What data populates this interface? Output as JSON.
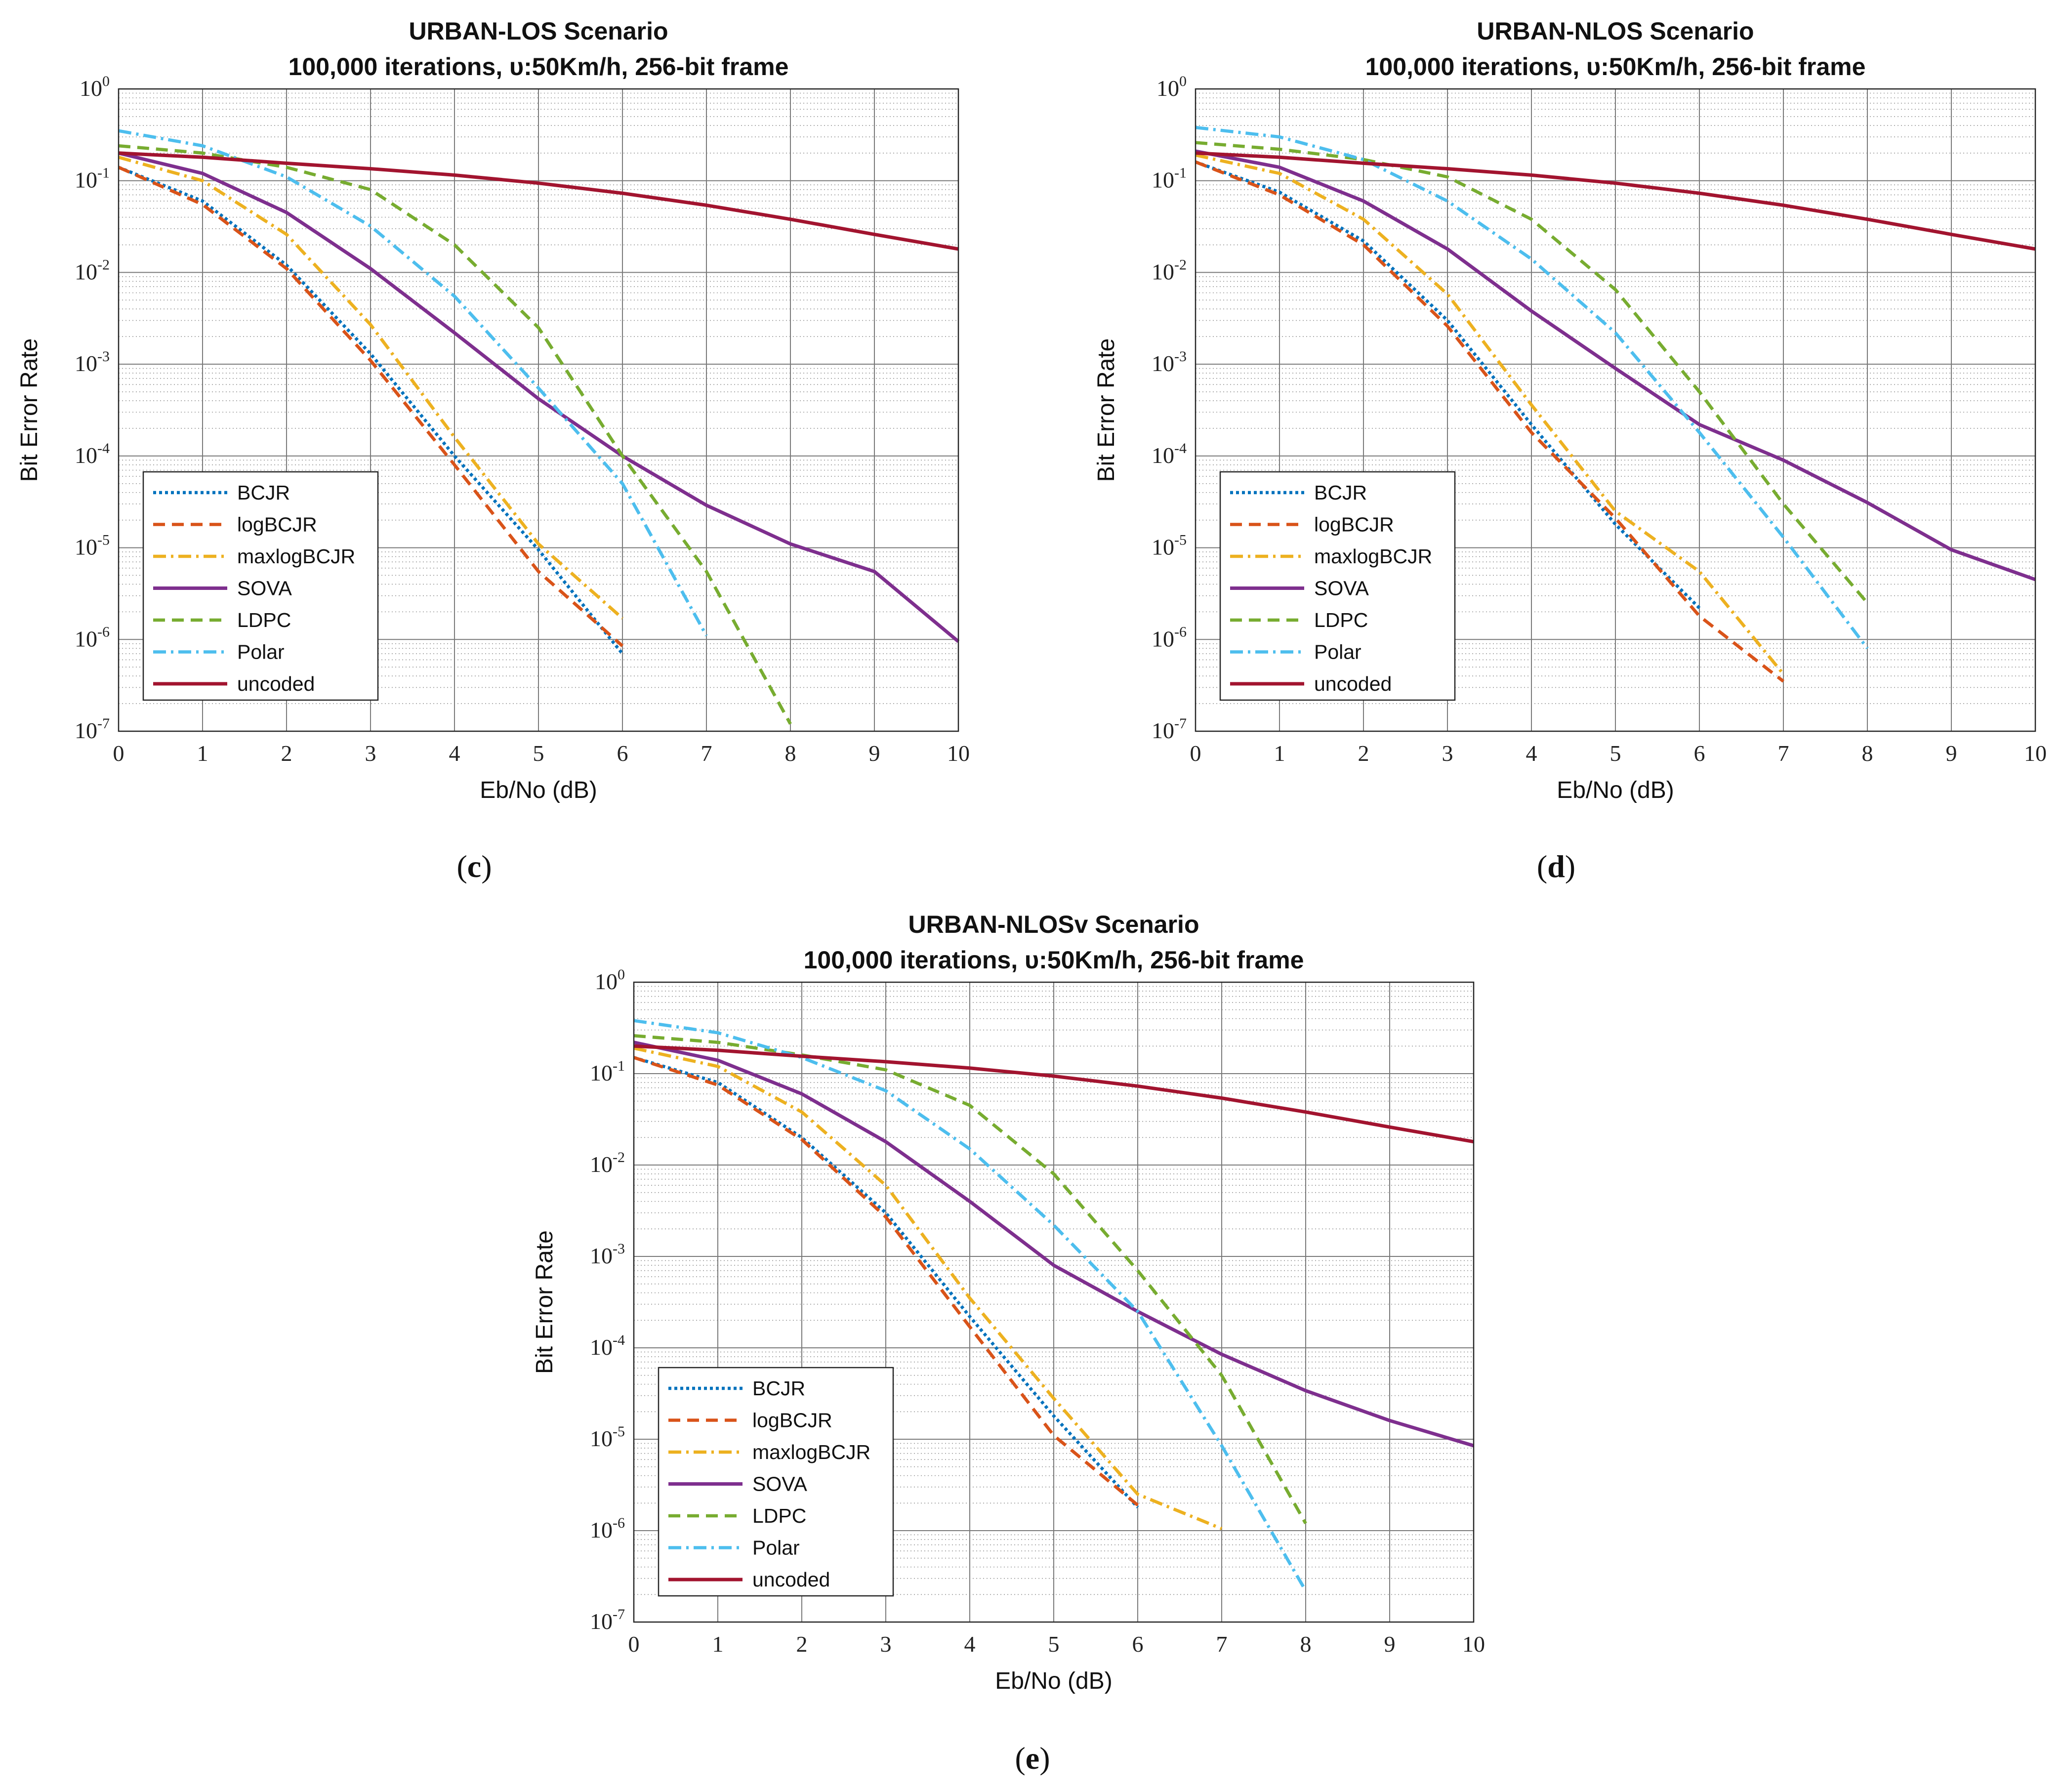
{
  "colors": {
    "BCJR": "#0072BD",
    "logBCJR": "#D95319",
    "maxlogBCJR": "#EDB120",
    "SOVA": "#7E2F8E",
    "LDPC": "#77AC30",
    "Polar": "#4DBEEE",
    "uncoded": "#A2142F"
  },
  "chart_data": [
    {
      "type": "line",
      "panel_label": "c",
      "title": [
        "URBAN-LOS Scenario",
        "100,000 iterations,  υ:50Km/h, 256-bit frame"
      ],
      "xlabel": "Eb/No (dB)",
      "ylabel": "Bit Error Rate",
      "xlim": [
        0,
        10
      ],
      "ylim": [
        1e-07,
        1
      ],
      "yscale": "log",
      "grid": true,
      "legend_position": "lower-left",
      "xticks": [
        "0",
        "1",
        "2",
        "3",
        "4",
        "5",
        "6",
        "7",
        "8",
        "9",
        "10"
      ],
      "yticks": [
        {
          "base": "10",
          "exp": "0"
        },
        {
          "base": "10",
          "exp": "-1"
        },
        {
          "base": "10",
          "exp": "-2"
        },
        {
          "base": "10",
          "exp": "-3"
        },
        {
          "base": "10",
          "exp": "-4"
        },
        {
          "base": "10",
          "exp": "-5"
        },
        {
          "base": "10",
          "exp": "-6"
        },
        {
          "base": "10",
          "exp": "-7"
        }
      ],
      "series": [
        {
          "name": "BCJR",
          "x": [
            0,
            1,
            2,
            3,
            4,
            5,
            6
          ],
          "y": [
            0.14,
            0.06,
            0.012,
            0.0013,
            0.0001,
            9.5e-06,
            7e-07
          ]
        },
        {
          "name": "logBCJR",
          "x": [
            0,
            1,
            2,
            3,
            4,
            5,
            6
          ],
          "y": [
            0.14,
            0.055,
            0.011,
            0.0011,
            8e-05,
            5.5e-06,
            8.5e-07
          ]
        },
        {
          "name": "maxlogBCJR",
          "x": [
            0,
            1,
            2,
            3,
            4,
            5,
            6
          ],
          "y": [
            0.18,
            0.1,
            0.026,
            0.0027,
            0.00016,
            1.1e-05,
            1.7e-06
          ]
        },
        {
          "name": "SOVA",
          "x": [
            0,
            1,
            2,
            3,
            4,
            5,
            6,
            7,
            8,
            9,
            10
          ],
          "y": [
            0.2,
            0.12,
            0.045,
            0.011,
            0.0022,
            0.00042,
            0.0001,
            2.9e-05,
            1.1e-05,
            5.5e-06,
            9.5e-07
          ]
        },
        {
          "name": "LDPC",
          "x": [
            0,
            1,
            2,
            3,
            4,
            5,
            6,
            7,
            8
          ],
          "y": [
            0.24,
            0.2,
            0.14,
            0.08,
            0.02,
            0.0025,
            0.0001,
            5.5e-06,
            1.2e-07
          ]
        },
        {
          "name": "Polar",
          "x": [
            0,
            1,
            2,
            3,
            4,
            5,
            6,
            7
          ],
          "y": [
            0.35,
            0.24,
            0.11,
            0.032,
            0.0055,
            0.00055,
            5e-05,
            1.1e-06
          ]
        },
        {
          "name": "uncoded",
          "x": [
            0,
            1,
            2,
            3,
            4,
            5,
            6,
            7,
            8,
            9,
            10
          ],
          "y": [
            0.2,
            0.18,
            0.155,
            0.135,
            0.115,
            0.094,
            0.073,
            0.054,
            0.038,
            0.026,
            0.018
          ]
        }
      ]
    },
    {
      "type": "line",
      "panel_label": "d",
      "title": [
        "URBAN-NLOS Scenario",
        "100,000 iterations,  υ:50Km/h, 256-bit frame"
      ],
      "xlabel": "Eb/No (dB)",
      "ylabel": "Bit Error Rate",
      "xlim": [
        0,
        10
      ],
      "ylim": [
        1e-07,
        1
      ],
      "yscale": "log",
      "grid": true,
      "legend_position": "lower-left",
      "xticks": [
        "0",
        "1",
        "2",
        "3",
        "4",
        "5",
        "6",
        "7",
        "8",
        "9",
        "10"
      ],
      "yticks": [
        {
          "base": "10",
          "exp": "0"
        },
        {
          "base": "10",
          "exp": "-1"
        },
        {
          "base": "10",
          "exp": "-2"
        },
        {
          "base": "10",
          "exp": "-3"
        },
        {
          "base": "10",
          "exp": "-4"
        },
        {
          "base": "10",
          "exp": "-5"
        },
        {
          "base": "10",
          "exp": "-6"
        },
        {
          "base": "10",
          "exp": "-7"
        }
      ],
      "series": [
        {
          "name": "BCJR",
          "x": [
            0,
            1,
            2,
            3,
            4,
            5,
            6
          ],
          "y": [
            0.16,
            0.075,
            0.022,
            0.003,
            0.00022,
            1.8e-05,
            2.2e-06
          ]
        },
        {
          "name": "logBCJR",
          "x": [
            0,
            1,
            2,
            3,
            4,
            5,
            6,
            7
          ],
          "y": [
            0.16,
            0.07,
            0.02,
            0.0026,
            0.00018,
            2.1e-05,
            1.8e-06,
            3.5e-07
          ]
        },
        {
          "name": "maxlogBCJR",
          "x": [
            0,
            1,
            2,
            3,
            4,
            5,
            6,
            7
          ],
          "y": [
            0.19,
            0.12,
            0.038,
            0.0058,
            0.00036,
            2.5e-05,
            5.5e-06,
            4.2e-07
          ]
        },
        {
          "name": "SOVA",
          "x": [
            0,
            1,
            2,
            3,
            4,
            5,
            6,
            7,
            8,
            9,
            10
          ],
          "y": [
            0.21,
            0.14,
            0.06,
            0.018,
            0.0038,
            0.0009,
            0.00022,
            9e-05,
            3.1e-05,
            9.5e-06,
            4.5e-06
          ]
        },
        {
          "name": "LDPC",
          "x": [
            0,
            1,
            2,
            3,
            4,
            5,
            6,
            7,
            8
          ],
          "y": [
            0.26,
            0.22,
            0.17,
            0.11,
            0.038,
            0.0065,
            0.0005,
            3e-05,
            2.5e-06
          ]
        },
        {
          "name": "Polar",
          "x": [
            0,
            1,
            2,
            3,
            4,
            5,
            6,
            7,
            8
          ],
          "y": [
            0.38,
            0.3,
            0.17,
            0.06,
            0.014,
            0.0022,
            0.00018,
            1.3e-05,
            8e-07
          ]
        },
        {
          "name": "uncoded",
          "x": [
            0,
            1,
            2,
            3,
            4,
            5,
            6,
            7,
            8,
            9,
            10
          ],
          "y": [
            0.2,
            0.18,
            0.155,
            0.135,
            0.115,
            0.094,
            0.073,
            0.054,
            0.038,
            0.026,
            0.018
          ]
        }
      ]
    },
    {
      "type": "line",
      "panel_label": "e",
      "title": [
        "URBAN-NLOSv Scenario",
        "100,000 iterations,  υ:50Km/h, 256-bit frame"
      ],
      "xlabel": "Eb/No (dB)",
      "ylabel": "Bit Error Rate",
      "xlim": [
        0,
        10
      ],
      "ylim": [
        1e-07,
        1
      ],
      "yscale": "log",
      "grid": true,
      "legend_position": "lower-left",
      "xticks": [
        "0",
        "1",
        "2",
        "3",
        "4",
        "5",
        "6",
        "7",
        "8",
        "9",
        "10"
      ],
      "yticks": [
        {
          "base": "10",
          "exp": "0"
        },
        {
          "base": "10",
          "exp": "-1"
        },
        {
          "base": "10",
          "exp": "-2"
        },
        {
          "base": "10",
          "exp": "-3"
        },
        {
          "base": "10",
          "exp": "-4"
        },
        {
          "base": "10",
          "exp": "-5"
        },
        {
          "base": "10",
          "exp": "-6"
        },
        {
          "base": "10",
          "exp": "-7"
        }
      ],
      "series": [
        {
          "name": "BCJR",
          "x": [
            0,
            1,
            2,
            3,
            4,
            5,
            6
          ],
          "y": [
            0.15,
            0.08,
            0.02,
            0.003,
            0.00022,
            1.8e-05,
            1.8e-06
          ]
        },
        {
          "name": "logBCJR",
          "x": [
            0,
            1,
            2,
            3,
            4,
            5,
            6
          ],
          "y": [
            0.15,
            0.075,
            0.019,
            0.0027,
            0.00017,
            1.1e-05,
            1.9e-06
          ]
        },
        {
          "name": "maxlogBCJR",
          "x": [
            0,
            1,
            2,
            3,
            4,
            5,
            6,
            7
          ],
          "y": [
            0.19,
            0.12,
            0.038,
            0.006,
            0.00035,
            2.8e-05,
            2.5e-06,
            1.05e-06
          ]
        },
        {
          "name": "SOVA",
          "x": [
            0,
            1,
            2,
            3,
            4,
            5,
            6,
            7,
            8,
            9,
            10
          ],
          "y": [
            0.22,
            0.14,
            0.06,
            0.018,
            0.004,
            0.0008,
            0.00025,
            8.5e-05,
            3.4e-05,
            1.6e-05,
            8.5e-06
          ]
        },
        {
          "name": "LDPC",
          "x": [
            0,
            1,
            2,
            3,
            4,
            5,
            6,
            7,
            8
          ],
          "y": [
            0.26,
            0.22,
            0.16,
            0.11,
            0.045,
            0.008,
            0.0007,
            5e-05,
            1.2e-06
          ]
        },
        {
          "name": "Polar",
          "x": [
            0,
            1,
            2,
            3,
            4,
            5,
            6,
            7,
            8
          ],
          "y": [
            0.38,
            0.28,
            0.15,
            0.065,
            0.015,
            0.0022,
            0.00025,
            8.5e-06,
            2.2e-07
          ]
        },
        {
          "name": "uncoded",
          "x": [
            0,
            1,
            2,
            3,
            4,
            5,
            6,
            7,
            8,
            9,
            10
          ],
          "y": [
            0.2,
            0.18,
            0.155,
            0.135,
            0.115,
            0.094,
            0.073,
            0.054,
            0.038,
            0.026,
            0.018
          ]
        }
      ]
    }
  ]
}
